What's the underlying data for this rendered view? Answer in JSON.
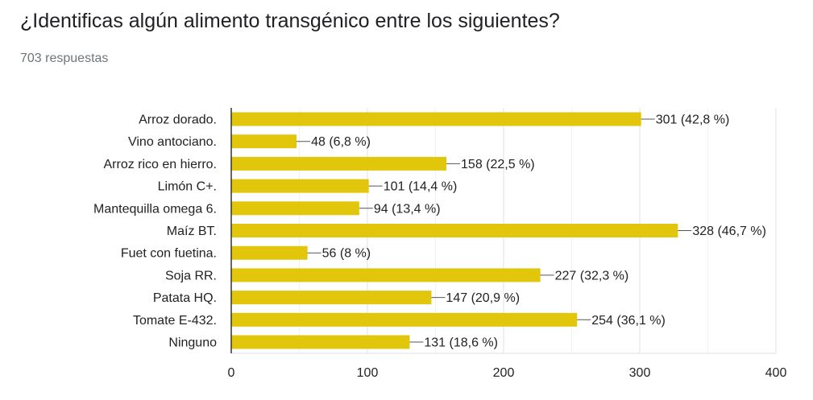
{
  "header": {
    "title": "¿Identificas algún alimento transgénico entre los siguientes?",
    "response_count": "703 respuestas"
  },
  "colors": {
    "bar": "#e2c60c",
    "grid": "#e0e0e0",
    "axis": "#333333",
    "text": "#222222"
  },
  "chart_data": {
    "type": "bar",
    "orientation": "horizontal",
    "categories": [
      "Arroz dorado.",
      "Vino antociano.",
      "Arroz rico en hierro.",
      "Limón C+.",
      "Mantequilla omega 6.",
      "Maíz BT.",
      "Fuet con fuetina.",
      "Soja RR.",
      "Patata HQ.",
      "Tomate E-432.",
      "Ninguno"
    ],
    "values": [
      301,
      48,
      158,
      101,
      94,
      328,
      56,
      227,
      147,
      254,
      131
    ],
    "data_labels": [
      "301 (42,8 %)",
      "48 (6,8 %)",
      "158 (22,5 %)",
      "101 (14,4 %)",
      "94 (13,4 %)",
      "328 (46,7 %)",
      "56 (8 %)",
      "227 (32,3 %)",
      "147 (20,9 %)",
      "254 (36,1 %)",
      "131 (18,6 %)"
    ],
    "xlim": [
      0,
      400
    ],
    "x_ticks": [
      "0",
      "100",
      "200",
      "300",
      "400"
    ],
    "x_tick_values": [
      0,
      100,
      200,
      300,
      400
    ],
    "minor_gridlines": [
      50,
      150,
      250,
      350
    ],
    "grid": true,
    "legend": "none"
  }
}
